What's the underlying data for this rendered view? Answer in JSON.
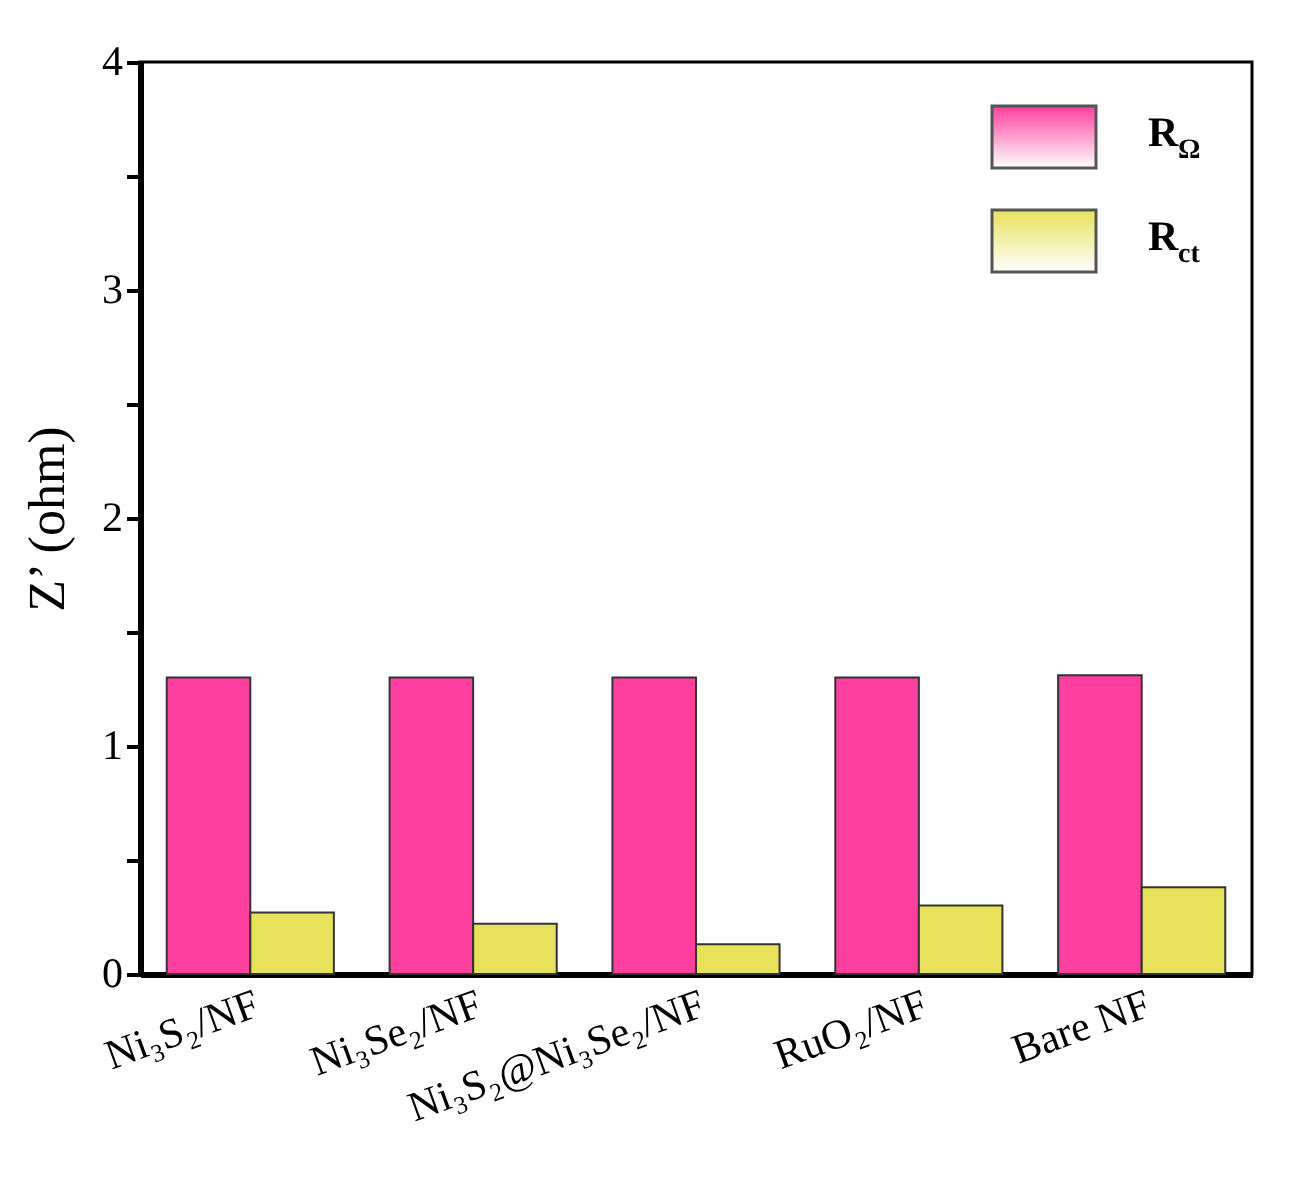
{
  "chart_data": {
    "type": "bar",
    "ylabel": "Z’ (ohm)",
    "categories": [
      "Ni₃S₂/NF",
      "Ni₃Se₂/NF",
      "Ni₃S₂@Ni₃Se₂/NF",
      "RuO₂/NF",
      "Bare NF"
    ],
    "series": [
      {
        "name": "R$_{Ω}$",
        "color": "#ff3fa0",
        "values": [
          1.3,
          1.3,
          1.3,
          1.3,
          1.31
        ]
      },
      {
        "name": "R$_{ct}$",
        "color": "#e8e25a",
        "values": [
          0.27,
          0.22,
          0.13,
          0.3,
          0.38
        ]
      }
    ],
    "ylim": [
      0,
      4
    ],
    "yticks": [
      0,
      {
        "value": 0.5,
        "label": null
      },
      1,
      {
        "value": 1.5,
        "label": null
      },
      2,
      {
        "value": 2.5,
        "label": null
      },
      3,
      {
        "value": 3.5,
        "label": null
      },
      4
    ],
    "legend": "top right",
    "grid": false
  }
}
